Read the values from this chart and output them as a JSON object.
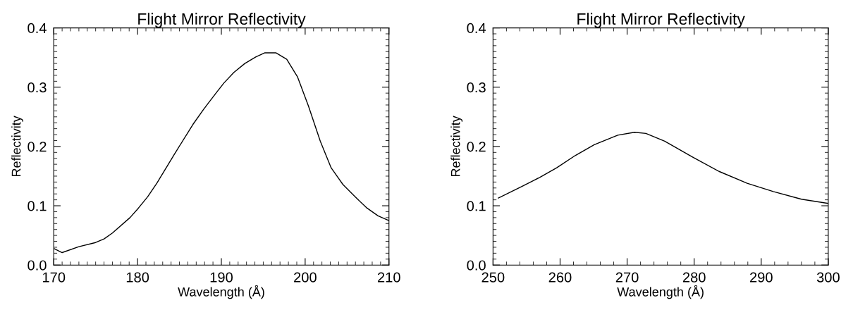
{
  "chart_data": [
    {
      "type": "line",
      "title": "Flight Mirror Reflectivity",
      "xlabel": "Wavelength (Å)",
      "ylabel": "Reflectivity",
      "xlim": [
        170,
        210
      ],
      "xticks": [
        170,
        180,
        190,
        200,
        210
      ],
      "ylim": [
        0,
        0.4
      ],
      "yticks": [
        {
          "value": 0,
          "label": "0.0"
        },
        0.1,
        0.2,
        0.3,
        0.4
      ],
      "series": [
        {
          "color": "#000000",
          "x": [
            170,
            171,
            173,
            175,
            176,
            177,
            179.1,
            180.1,
            181.2,
            182.3,
            184.4,
            186.6,
            187.9,
            189.2,
            190.3,
            191.5,
            192.8,
            194.1,
            195.2,
            196.5,
            197.8,
            199.1,
            200.4,
            201.8,
            203.1,
            204.5,
            205.9,
            207.3,
            208.7,
            210
          ],
          "values": [
            0.028,
            0.021,
            0.031,
            0.038,
            0.044,
            0.054,
            0.08,
            0.096,
            0.115,
            0.138,
            0.187,
            0.237,
            0.263,
            0.287,
            0.307,
            0.325,
            0.34,
            0.351,
            0.358,
            0.358,
            0.347,
            0.317,
            0.268,
            0.209,
            0.164,
            0.136,
            0.116,
            0.097,
            0.083,
            0.075
          ]
        }
      ]
    },
    {
      "type": "line",
      "title": "Flight Mirror Reflectivity",
      "xlabel": "Wavelength (Å)",
      "ylabel": "Reflectivity",
      "xlim": [
        250,
        300
      ],
      "xticks": [
        250,
        260,
        270,
        280,
        290,
        300
      ],
      "ylim": [
        0,
        0.4
      ],
      "yticks": [
        {
          "value": 0,
          "label": "0.0"
        },
        0.1,
        0.2,
        0.3,
        0.4
      ],
      "series": [
        {
          "color": "#000000",
          "x": [
            250.8,
            254.2,
            257.0,
            259.5,
            262.3,
            265.1,
            268.6,
            271.1,
            272.8,
            275.6,
            279.8,
            283.7,
            287.9,
            291.8,
            296.0,
            300
          ],
          "values": [
            0.113,
            0.132,
            0.148,
            0.164,
            0.185,
            0.203,
            0.219,
            0.224,
            0.222,
            0.209,
            0.182,
            0.158,
            0.138,
            0.124,
            0.111,
            0.104
          ]
        }
      ]
    }
  ]
}
